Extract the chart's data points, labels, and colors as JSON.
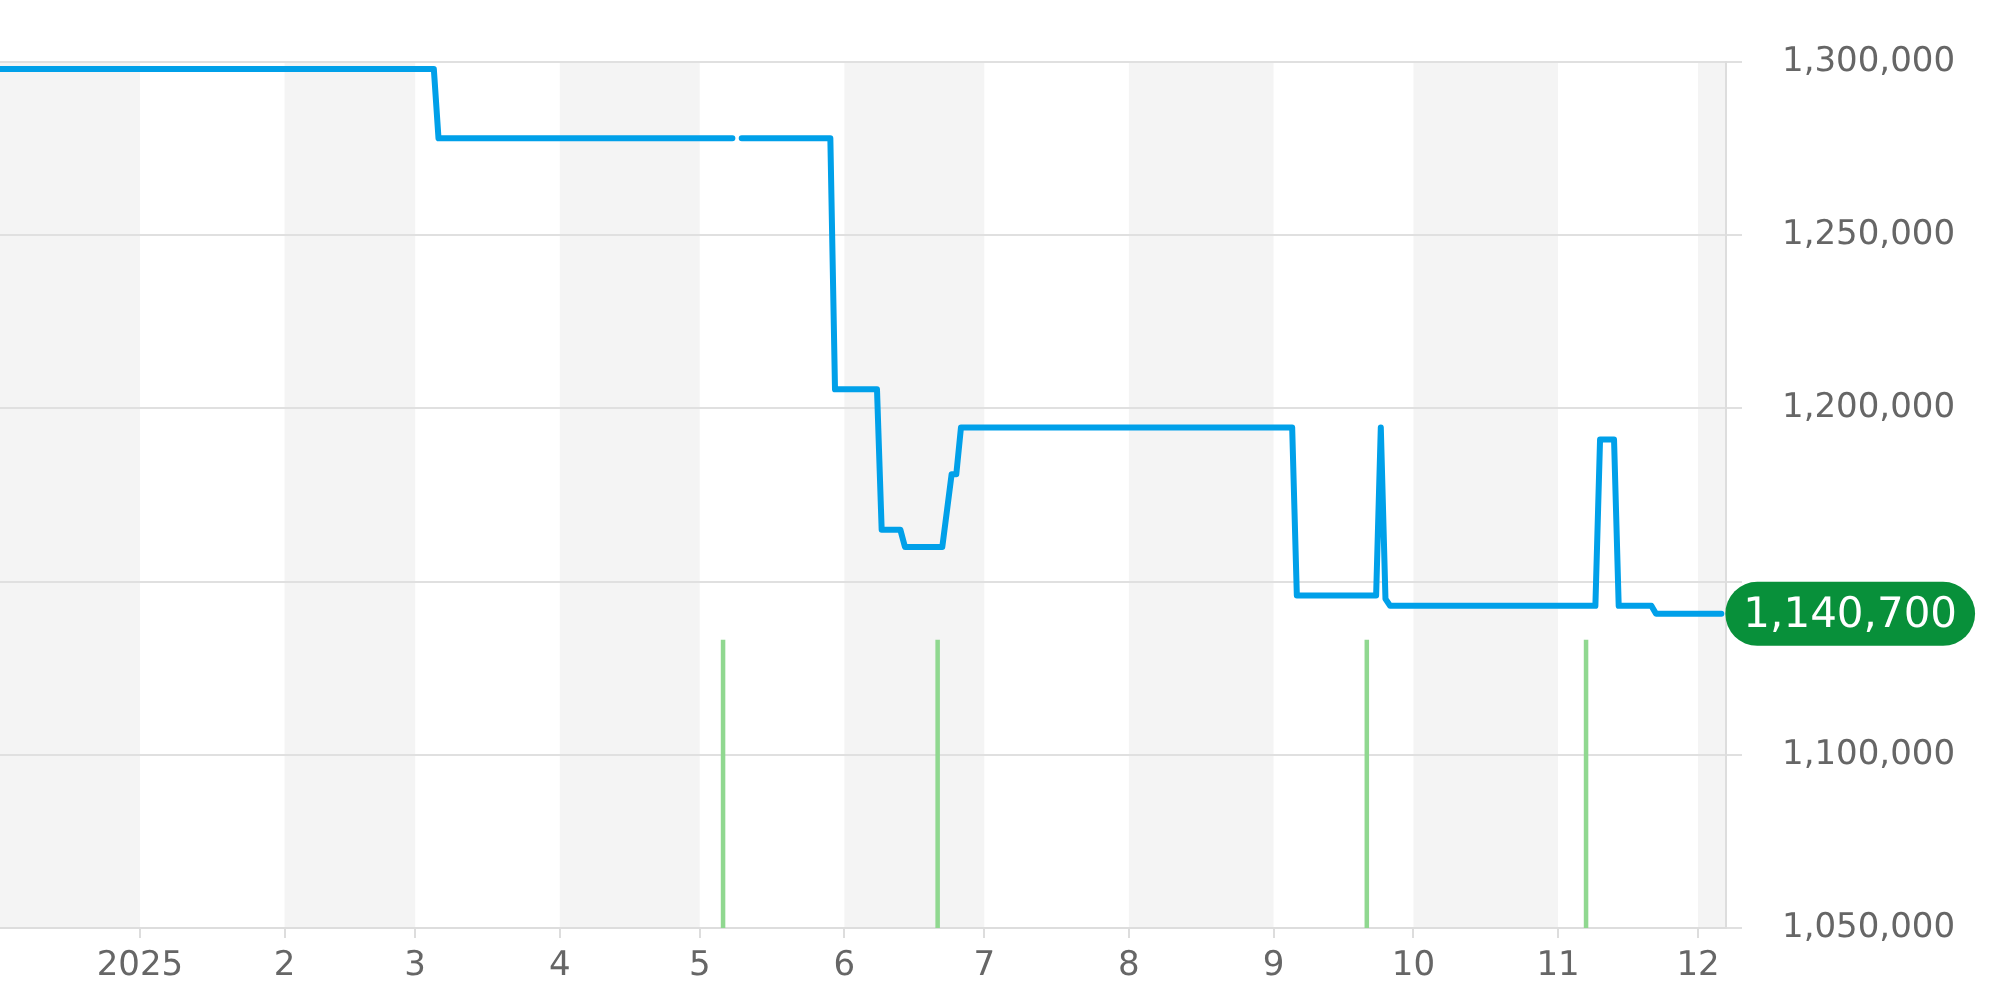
{
  "chart_data": {
    "type": "line",
    "series": [
      {
        "color": "#00a0e9",
        "x": [
          "2024-12-02",
          "2025-03-05",
          "2025-03-06",
          "2025-05-08",
          "2025-05-09",
          "2025-05-10",
          "2025-05-29",
          "2025-05-30",
          "2025-06-08",
          "2025-06-09",
          "2025-06-13",
          "2025-06-14",
          "2025-06-22",
          "2025-06-24",
          "2025-06-25",
          "2025-06-26",
          "2025-09-05",
          "2025-09-06",
          "2025-09-23",
          "2025-09-24",
          "2025-09-25",
          "2025-09-26",
          "2025-11-09",
          "2025-11-10",
          "2025-11-13",
          "2025-11-14",
          "2025-11-21",
          "2025-11-22",
          "2025-12-06"
        ],
        "values": [
          1298000,
          1298000,
          1278000,
          1278000,
          null,
          1278000,
          1278000,
          1205500,
          1205500,
          1165000,
          1165000,
          1160000,
          1160000,
          1181000,
          1181000,
          1194500,
          1194500,
          1146000,
          1146000,
          1194500,
          1145000,
          1143000,
          1143000,
          1191000,
          1191000,
          1143000,
          1143000,
          1140700,
          1140700
        ]
      },
      {
        "type": "bar",
        "color": "#90d890",
        "x": [
          "2025-05-06",
          "2025-06-21",
          "2025-09-21",
          "2025-11-07"
        ],
        "values": [
          1133000,
          1133000,
          1133000,
          1133000
        ]
      }
    ],
    "xlim": [
      "2024-12-02",
      "2025-12-07"
    ],
    "xticks": [
      {
        "value": "2025-01-01",
        "label": "2025"
      },
      {
        "value": "2025-02-01",
        "label": "2"
      },
      {
        "value": "2025-03-01",
        "label": "3"
      },
      {
        "value": "2025-04-01",
        "label": "4"
      },
      {
        "value": "2025-05-01",
        "label": "5"
      },
      {
        "value": "2025-06-01",
        "label": "6"
      },
      {
        "value": "2025-07-01",
        "label": "7"
      },
      {
        "value": "2025-08-01",
        "label": "8"
      },
      {
        "value": "2025-09-01",
        "label": "9"
      },
      {
        "value": "2025-10-01",
        "label": "10"
      },
      {
        "value": "2025-11-01",
        "label": "11"
      },
      {
        "value": "2025-12-01",
        "label": "12"
      }
    ],
    "ylim": [
      1050000,
      1300000
    ],
    "yticks": [
      {
        "value": 1050000,
        "label": "1,050,000"
      },
      {
        "value": 1100000,
        "label": "1,100,000"
      },
      {
        "value": 1150000,
        "label": null
      },
      {
        "value": 1200000,
        "label": "1,200,000"
      },
      {
        "value": 1250000,
        "label": "1,250,000"
      },
      {
        "value": 1300000,
        "label": "1,300,000"
      }
    ],
    "bands": [
      {
        "axis": "x",
        "from": "2024-12-02",
        "to": "2025-01-01",
        "color": "#f4f4f4"
      },
      {
        "axis": "x",
        "from": "2025-02-01",
        "to": "2025-03-01",
        "color": "#f4f4f4"
      },
      {
        "axis": "x",
        "from": "2025-04-01",
        "to": "2025-05-01",
        "color": "#f4f4f4"
      },
      {
        "axis": "x",
        "from": "2025-06-01",
        "to": "2025-07-01",
        "color": "#f4f4f4"
      },
      {
        "axis": "x",
        "from": "2025-08-01",
        "to": "2025-09-01",
        "color": "#f4f4f4"
      },
      {
        "axis": "x",
        "from": "2025-10-01",
        "to": "2025-11-01",
        "color": "#f4f4f4"
      },
      {
        "axis": "x",
        "from": "2025-12-01",
        "to": "2025-12-07",
        "color": "#f4f4f4"
      }
    ],
    "annotations": [
      {
        "text": "1,140,700",
        "x": "2025-12-06",
        "y": 1140700
      }
    ],
    "grid": "y",
    "legend": false,
    "marker": "none"
  }
}
